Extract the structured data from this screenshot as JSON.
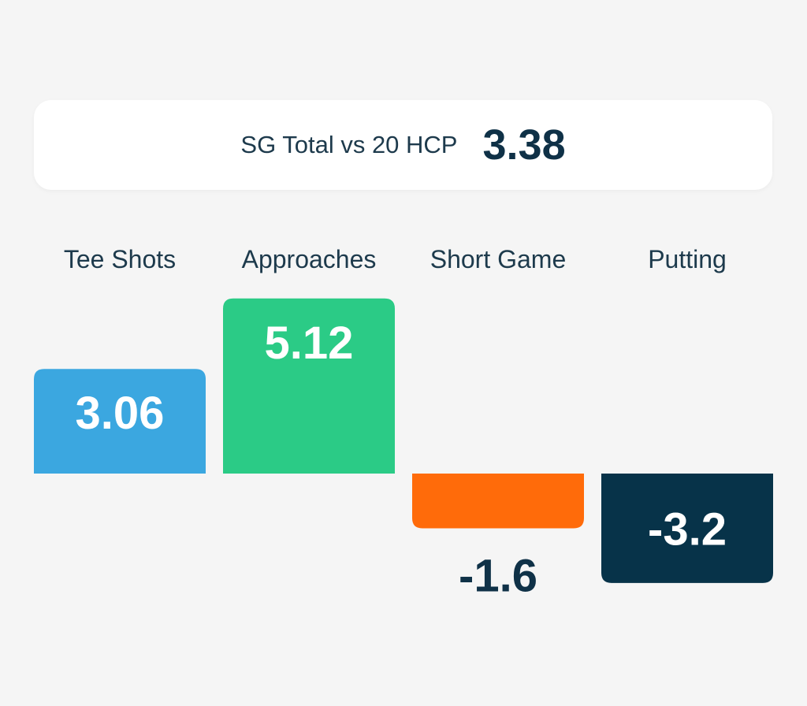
{
  "summary": {
    "label": "SG Total vs 20 HCP",
    "value": "3.38"
  },
  "chart_data": {
    "type": "bar",
    "categories": [
      "Tee Shots",
      "Approaches",
      "Short Game",
      "Putting"
    ],
    "values": [
      3.06,
      5.12,
      -1.6,
      -3.2
    ],
    "value_labels": [
      "3.06",
      "5.12",
      "-1.6",
      "-3.2"
    ],
    "colors": [
      "#3ba7e0",
      "#2bcb86",
      "#ff6b0a",
      "#073349"
    ],
    "value_label_color_inside": "#ffffff",
    "value_label_color_outside": "#0f3147",
    "title": "",
    "xlabel": "",
    "ylabel": "",
    "grid": false
  }
}
